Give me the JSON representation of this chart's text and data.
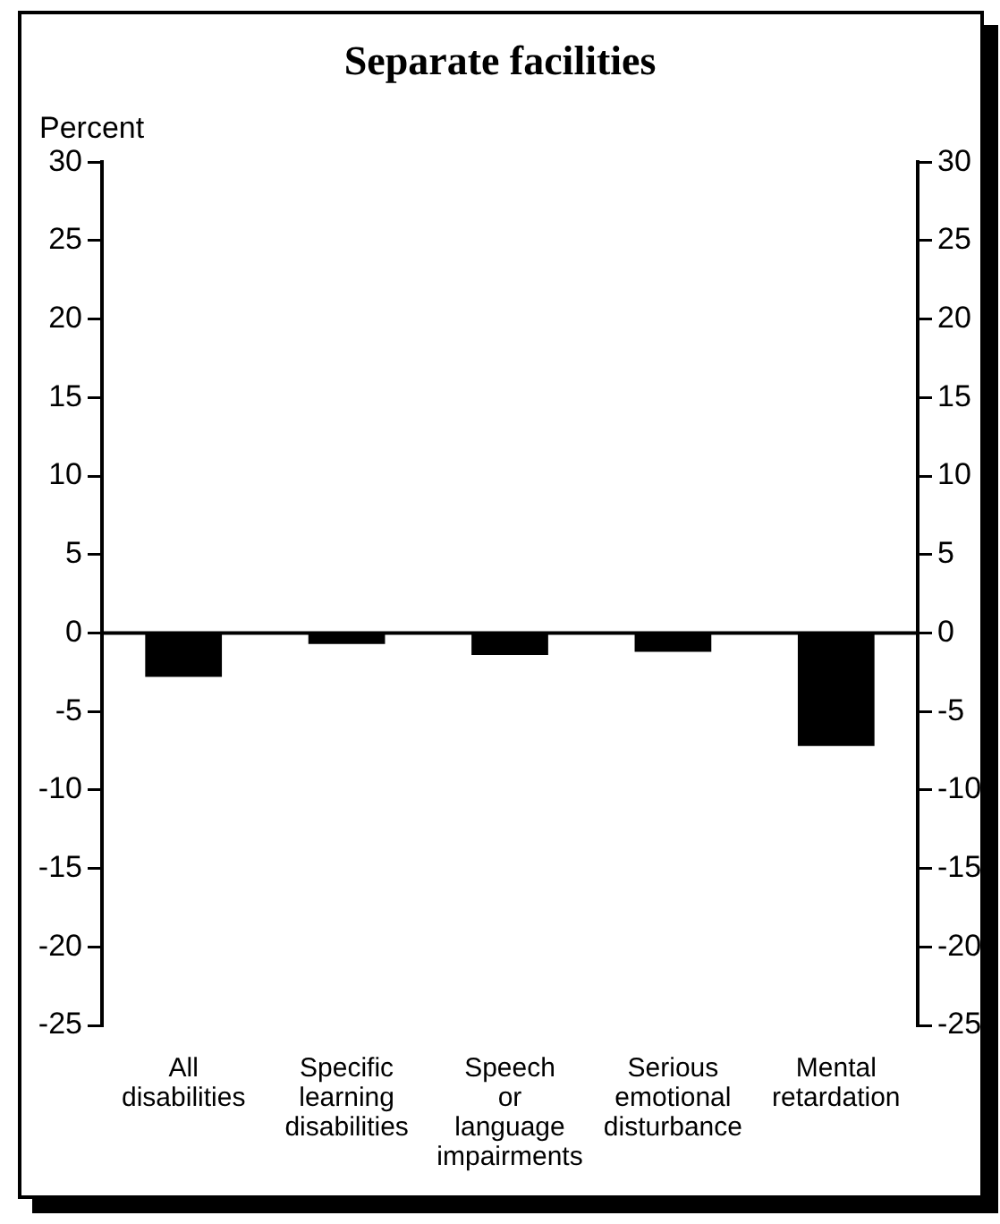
{
  "chart_data": {
    "type": "bar",
    "title": "Separate facilities",
    "ylabel": "Percent",
    "categories": [
      "All disabilities",
      "Specific learning disabilities",
      "Speech or language impairments",
      "Serious emotional disturbance",
      "Mental retardation"
    ],
    "values": [
      -2.8,
      -0.7,
      -1.4,
      -1.2,
      -7.2
    ],
    "color": "#000000",
    "ylim": [
      -25,
      30
    ],
    "yticks": [
      -25,
      -20,
      -15,
      -10,
      -5,
      0,
      5,
      10,
      15,
      20,
      25,
      30
    ],
    "y2lim": [
      -25,
      30
    ],
    "y2ticks": [
      -25,
      -20,
      -15,
      -10,
      -5,
      0,
      5,
      10,
      15,
      20,
      25,
      30
    ]
  }
}
